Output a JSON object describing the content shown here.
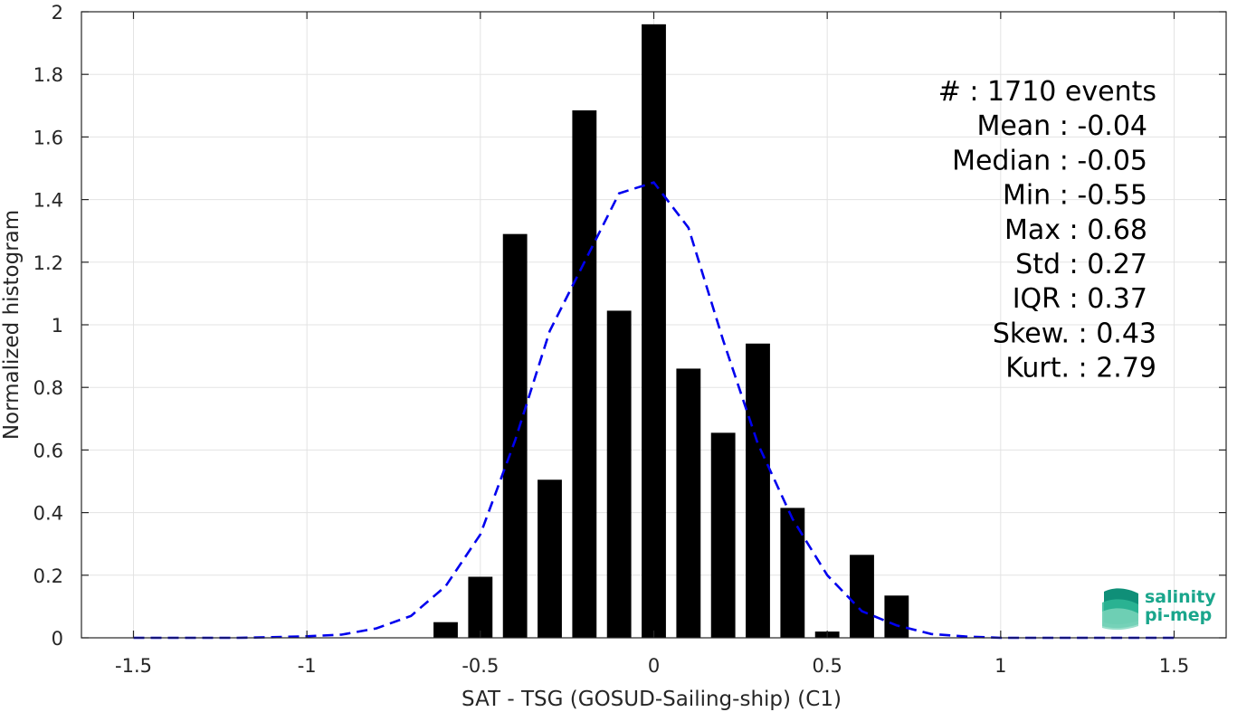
{
  "chart_data": {
    "type": "bar",
    "xlabel": "SAT - TSG (GOSUD-Sailing-ship) (C1)",
    "ylabel": "Normalized histogram",
    "xlim": [
      -1.65,
      1.65
    ],
    "ylim": [
      0,
      2
    ],
    "xticks": [
      -1.5,
      -1,
      -0.5,
      0,
      0.5,
      1,
      1.5
    ],
    "xtick_labels": [
      "-1.5",
      "-1",
      "-0.5",
      "0",
      "0.5",
      "1",
      "1.5"
    ],
    "yticks": [
      0,
      0.2,
      0.4,
      0.6,
      0.8,
      1,
      1.2,
      1.4,
      1.6,
      1.8,
      2
    ],
    "ytick_labels": [
      "0",
      "0.2",
      "0.4",
      "0.6",
      "0.8",
      "1",
      "1.2",
      "1.4",
      "1.6",
      "1.8",
      "2"
    ],
    "grid": true,
    "bar_width": 0.07,
    "bars": {
      "x": [
        -0.6,
        -0.5,
        -0.4,
        -0.3,
        -0.2,
        -0.1,
        0.0,
        0.1,
        0.2,
        0.3,
        0.4,
        0.5,
        0.6,
        0.7
      ],
      "values": [
        0.05,
        0.195,
        1.29,
        0.505,
        1.685,
        1.045,
        1.96,
        0.86,
        0.655,
        0.94,
        0.415,
        0.02,
        0.265,
        0.135
      ],
      "color": "#000000"
    },
    "fit_curve": {
      "style": "dashed",
      "color": "#0000ee",
      "x": [
        -1.5,
        -1.4,
        -1.3,
        -1.2,
        -1.1,
        -1.0,
        -0.9,
        -0.8,
        -0.7,
        -0.6,
        -0.5,
        -0.4,
        -0.3,
        -0.2,
        -0.1,
        0.0,
        0.1,
        0.2,
        0.3,
        0.4,
        0.5,
        0.6,
        0.7,
        0.8,
        0.9,
        1.0,
        1.1,
        1.2,
        1.3,
        1.4,
        1.5
      ],
      "y": [
        0,
        0,
        0,
        0,
        0.002,
        0.005,
        0.01,
        0.03,
        0.07,
        0.165,
        0.33,
        0.63,
        0.98,
        1.2,
        1.42,
        1.455,
        1.31,
        0.95,
        0.62,
        0.38,
        0.2,
        0.085,
        0.04,
        0.012,
        0.004,
        0,
        0,
        0,
        0,
        0,
        0
      ]
    },
    "stats": [
      "#  : 1710 events",
      "Mean : -0.04",
      "Median : -0.05",
      "Min : -0.55",
      "Max : 0.68",
      "Std : 0.27",
      "IQR : 0.37",
      "Skew. : 0.43",
      "Kurt. : 2.79"
    ]
  },
  "logo": {
    "line1": "salinity",
    "line2": "pi-mep",
    "color": "#1aa68c"
  }
}
